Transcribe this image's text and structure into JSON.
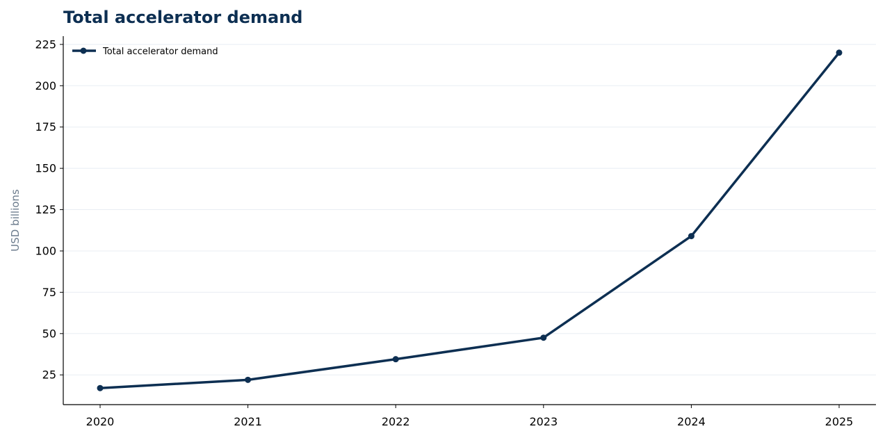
{
  "chart_data": {
    "type": "line",
    "title": "Total accelerator demand",
    "xlabel": "",
    "ylabel": "USD billions",
    "categories": [
      "2020",
      "2021",
      "2022",
      "2023",
      "2024",
      "2025"
    ],
    "series": [
      {
        "name": "Total accelerator demand",
        "values": [
          17,
          22,
          34.5,
          47.5,
          109,
          220
        ]
      }
    ],
    "ylim": [
      7,
      230
    ],
    "yticks": [
      25,
      50,
      75,
      100,
      125,
      150,
      175,
      200,
      225
    ],
    "grid": "horizontal",
    "legend": "top-left",
    "colors": {
      "line": "#0d2f52",
      "title": "#0d2f52",
      "grid": "#e8edf3",
      "ylabel": "#6b7b8c"
    }
  }
}
